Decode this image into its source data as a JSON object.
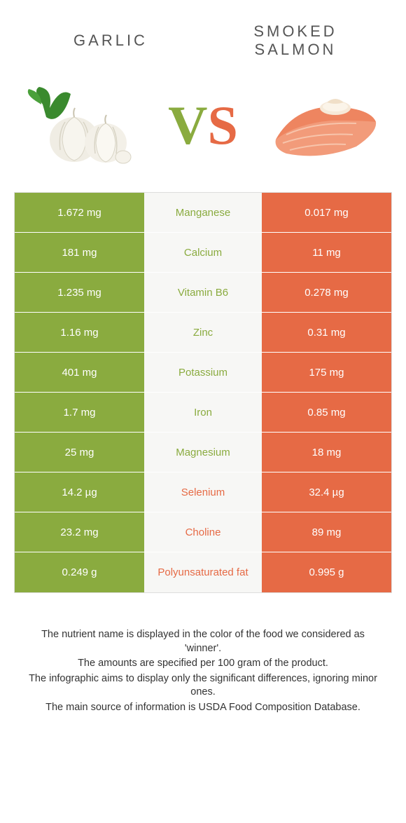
{
  "colors": {
    "left": "#8aab3f",
    "right": "#e66a45",
    "mid_bg": "#f7f7f5",
    "border": "#dddddd",
    "title_text": "#555555",
    "footer_text": "#333333"
  },
  "foods": {
    "left": "Garlic",
    "right": "Smoked Salmon"
  },
  "vs": {
    "v": "V",
    "s": "S"
  },
  "rows": [
    {
      "nutrient": "Manganese",
      "left": "1.672 mg",
      "right": "0.017 mg",
      "winner": "left"
    },
    {
      "nutrient": "Calcium",
      "left": "181 mg",
      "right": "11 mg",
      "winner": "left"
    },
    {
      "nutrient": "Vitamin B6",
      "left": "1.235 mg",
      "right": "0.278 mg",
      "winner": "left"
    },
    {
      "nutrient": "Zinc",
      "left": "1.16 mg",
      "right": "0.31 mg",
      "winner": "left"
    },
    {
      "nutrient": "Potassium",
      "left": "401 mg",
      "right": "175 mg",
      "winner": "left"
    },
    {
      "nutrient": "Iron",
      "left": "1.7 mg",
      "right": "0.85 mg",
      "winner": "left"
    },
    {
      "nutrient": "Magnesium",
      "left": "25 mg",
      "right": "18 mg",
      "winner": "left"
    },
    {
      "nutrient": "Selenium",
      "left": "14.2 µg",
      "right": "32.4 µg",
      "winner": "right"
    },
    {
      "nutrient": "Choline",
      "left": "23.2 mg",
      "right": "89 mg",
      "winner": "right"
    },
    {
      "nutrient": "Polyunsaturated fat",
      "left": "0.249 g",
      "right": "0.995 g",
      "winner": "right"
    }
  ],
  "footer": {
    "l1": "The nutrient name is displayed in the color of the food we considered as 'winner'.",
    "l2": "The amounts are specified per 100 gram of the product.",
    "l3": "The infographic aims to display only the significant differences, ignoring minor ones.",
    "l4": "The main source of information is USDA Food Composition Database."
  }
}
